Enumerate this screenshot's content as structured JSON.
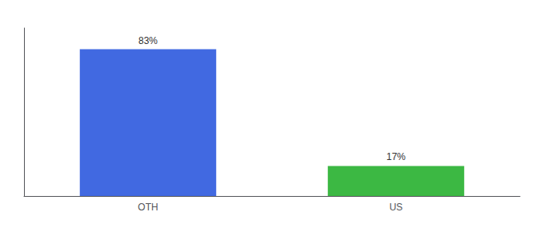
{
  "chart_data": {
    "type": "bar",
    "categories": [
      "OTH",
      "US"
    ],
    "values": [
      83,
      17
    ],
    "value_labels": [
      "83%",
      "17%"
    ],
    "colors": [
      "#4169E1",
      "#3CB843"
    ],
    "ylim": [
      0,
      95
    ],
    "grid": false,
    "data_labels": true,
    "tick_labels": "x"
  }
}
